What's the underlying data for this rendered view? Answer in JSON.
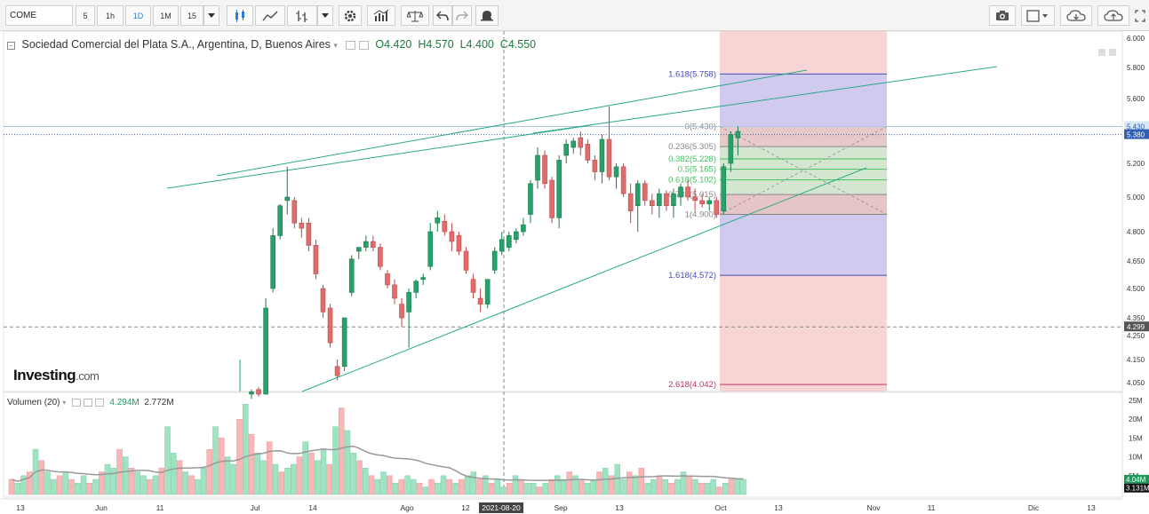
{
  "toolbar": {
    "symbol": "COME",
    "intervals": [
      "5",
      "1h",
      "1D",
      "1M",
      "15"
    ],
    "active_interval": "1D",
    "icons": [
      "candle-style-icon",
      "line-chart-icon",
      "bar-style-icon",
      "settings-icon",
      "indicators-icon",
      "compare-icon",
      "undo-icon",
      "redo-icon",
      "alert-icon",
      "camera-icon",
      "layout-icon",
      "cloud-download-icon",
      "cloud-upload-icon",
      "fullscreen-icon"
    ]
  },
  "legend": {
    "title": "Sociedad Comercial del Plata S.A., Argentina, D, Buenos Aires",
    "open": "O4.420",
    "high": "H4.570",
    "low": "L4.400",
    "close": "C4.550"
  },
  "volume_legend": {
    "title": "Volumen (20)",
    "value1": "4.294M",
    "value2": "2.772M"
  },
  "logo": {
    "brand": "Investing",
    "suffix": ".com"
  },
  "colors": {
    "up": "#26a269",
    "down": "#e26b6b",
    "vol_up": "#9fe3c2",
    "vol_down": "#f7b7b7",
    "fib_upper": "#c8c8f2",
    "fib_lower": "#f5c7c7"
  },
  "chart_data": {
    "type": "candlestick",
    "price_axis": [
      "6.000",
      "5.800",
      "5.600",
      "5.400",
      "5.200",
      "5.000",
      "4.800",
      "4.650",
      "4.500",
      "4.350",
      "4.250",
      "4.150",
      "4.050"
    ],
    "price_badges": [
      {
        "label": "5.430",
        "price": 5.43
      },
      {
        "label": "5.380",
        "price": 5.38
      },
      {
        "label": "4.299",
        "price": 4.299
      }
    ],
    "volume_axis": [
      "25M",
      "20M",
      "15M",
      "10M",
      "5M"
    ],
    "volume_badges": [
      {
        "label": "4.04M"
      },
      {
        "label": "3.131M"
      }
    ],
    "x_axis": [
      "13",
      "Jun",
      "11",
      "Jul",
      "14",
      "Ago",
      "12",
      "2021-08-20",
      "Sep",
      "13",
      "Oct",
      "13",
      "Nov",
      "11",
      "Dic",
      "13"
    ],
    "fib_levels": [
      {
        "label": "1.618(5.758)",
        "price": 5.758,
        "color": "#4a4ab8"
      },
      {
        "label": "0(5.430)",
        "price": 5.43,
        "color": "#888888"
      },
      {
        "label": "0.236(5.305)",
        "price": 5.305,
        "color": "#888888"
      },
      {
        "label": "0.382(5.228)",
        "price": 5.228,
        "color": "#3ec25f"
      },
      {
        "label": "0.5(5.165)",
        "price": 5.165,
        "color": "#3ec25f"
      },
      {
        "label": "0.618(5.102)",
        "price": 5.102,
        "color": "#3ec25f"
      },
      {
        "label": "0.786(5.015)",
        "price": 5.015,
        "color": "#888888"
      },
      {
        "label": "1(4.900)",
        "price": 4.9,
        "color": "#888888"
      },
      {
        "label": "1.618(4.572)",
        "price": 4.572,
        "color": "#4a4ab8"
      },
      {
        "label": "2.618(4.042)",
        "price": 4.042,
        "color": "#c0306b"
      }
    ],
    "candles": [
      {
        "o": 4.0,
        "h": 4.02,
        "l": 3.98,
        "c": 4.01
      },
      {
        "o": 4.02,
        "h": 4.03,
        "l": 3.99,
        "c": 4.0
      },
      {
        "o": 4.0,
        "h": 4.45,
        "l": 4.0,
        "c": 4.4
      },
      {
        "o": 4.5,
        "h": 4.82,
        "l": 4.48,
        "c": 4.78
      },
      {
        "o": 4.78,
        "h": 4.96,
        "l": 4.76,
        "c": 4.95
      },
      {
        "o": 4.98,
        "h": 5.18,
        "l": 4.9,
        "c": 5.0
      },
      {
        "o": 4.98,
        "h": 5.0,
        "l": 4.82,
        "c": 4.85
      },
      {
        "o": 4.85,
        "h": 4.88,
        "l": 4.77,
        "c": 4.82
      },
      {
        "o": 4.85,
        "h": 4.88,
        "l": 4.7,
        "c": 4.73
      },
      {
        "o": 4.73,
        "h": 4.76,
        "l": 4.55,
        "c": 4.58
      },
      {
        "o": 4.5,
        "h": 4.52,
        "l": 4.35,
        "c": 4.38
      },
      {
        "o": 4.4,
        "h": 4.42,
        "l": 4.2,
        "c": 4.22
      },
      {
        "o": 4.12,
        "h": 4.15,
        "l": 4.06,
        "c": 4.08
      },
      {
        "o": 4.12,
        "h": 4.35,
        "l": 4.1,
        "c": 4.35
      },
      {
        "o": 4.48,
        "h": 4.68,
        "l": 4.46,
        "c": 4.66
      },
      {
        "o": 4.7,
        "h": 4.72,
        "l": 4.66,
        "c": 4.72
      },
      {
        "o": 4.72,
        "h": 4.78,
        "l": 4.7,
        "c": 4.75
      },
      {
        "o": 4.75,
        "h": 4.78,
        "l": 4.7,
        "c": 4.72
      },
      {
        "o": 4.72,
        "h": 4.74,
        "l": 4.6,
        "c": 4.62
      },
      {
        "o": 4.58,
        "h": 4.6,
        "l": 4.5,
        "c": 4.52
      },
      {
        "o": 4.52,
        "h": 4.55,
        "l": 4.42,
        "c": 4.45
      },
      {
        "o": 4.42,
        "h": 4.45,
        "l": 4.3,
        "c": 4.35
      },
      {
        "o": 4.38,
        "h": 4.5,
        "l": 4.2,
        "c": 4.48
      },
      {
        "o": 4.48,
        "h": 4.55,
        "l": 4.45,
        "c": 4.54
      },
      {
        "o": 4.55,
        "h": 4.58,
        "l": 4.52,
        "c": 4.56
      },
      {
        "o": 4.62,
        "h": 4.85,
        "l": 4.6,
        "c": 4.8
      },
      {
        "o": 4.85,
        "h": 4.92,
        "l": 4.8,
        "c": 4.88
      },
      {
        "o": 4.86,
        "h": 4.9,
        "l": 4.78,
        "c": 4.8
      },
      {
        "o": 4.8,
        "h": 4.85,
        "l": 4.7,
        "c": 4.75
      },
      {
        "o": 4.78,
        "h": 4.8,
        "l": 4.68,
        "c": 4.7
      },
      {
        "o": 4.7,
        "h": 4.72,
        "l": 4.58,
        "c": 4.6
      },
      {
        "o": 4.55,
        "h": 4.58,
        "l": 4.45,
        "c": 4.48
      },
      {
        "o": 4.45,
        "h": 4.5,
        "l": 4.38,
        "c": 4.42
      },
      {
        "o": 4.42,
        "h": 4.55,
        "l": 4.4,
        "c": 4.55
      },
      {
        "o": 4.6,
        "h": 4.72,
        "l": 4.58,
        "c": 4.7
      },
      {
        "o": 4.7,
        "h": 4.8,
        "l": 4.68,
        "c": 4.76
      },
      {
        "o": 4.72,
        "h": 4.8,
        "l": 4.7,
        "c": 4.78
      },
      {
        "o": 4.76,
        "h": 4.82,
        "l": 4.74,
        "c": 4.8
      },
      {
        "o": 4.8,
        "h": 4.88,
        "l": 4.78,
        "c": 4.84
      },
      {
        "o": 4.9,
        "h": 5.1,
        "l": 4.85,
        "c": 5.08
      },
      {
        "o": 5.1,
        "h": 5.3,
        "l": 5.05,
        "c": 5.25
      },
      {
        "o": 5.25,
        "h": 5.28,
        "l": 5.05,
        "c": 5.08
      },
      {
        "o": 5.1,
        "h": 5.12,
        "l": 4.85,
        "c": 4.88
      },
      {
        "o": 4.88,
        "h": 5.25,
        "l": 4.82,
        "c": 5.22
      },
      {
        "o": 5.25,
        "h": 5.35,
        "l": 5.2,
        "c": 5.32
      },
      {
        "o": 5.3,
        "h": 5.36,
        "l": 5.26,
        "c": 5.34
      },
      {
        "o": 5.36,
        "h": 5.4,
        "l": 5.25,
        "c": 5.3
      },
      {
        "o": 5.32,
        "h": 5.35,
        "l": 5.2,
        "c": 5.22
      },
      {
        "o": 5.22,
        "h": 5.25,
        "l": 5.1,
        "c": 5.15
      },
      {
        "o": 5.15,
        "h": 5.38,
        "l": 5.08,
        "c": 5.35
      },
      {
        "o": 5.35,
        "h": 5.55,
        "l": 5.1,
        "c": 5.12
      },
      {
        "o": 5.12,
        "h": 5.2,
        "l": 5.05,
        "c": 5.18
      },
      {
        "o": 5.18,
        "h": 5.2,
        "l": 5.0,
        "c": 5.02
      },
      {
        "o": 5.02,
        "h": 5.08,
        "l": 4.85,
        "c": 4.92
      },
      {
        "o": 4.95,
        "h": 5.1,
        "l": 4.8,
        "c": 5.08
      },
      {
        "o": 5.08,
        "h": 5.1,
        "l": 4.95,
        "c": 4.98
      },
      {
        "o": 4.98,
        "h": 5.02,
        "l": 4.9,
        "c": 4.95
      },
      {
        "o": 4.95,
        "h": 5.05,
        "l": 4.88,
        "c": 5.02
      },
      {
        "o": 5.02,
        "h": 5.04,
        "l": 4.92,
        "c": 4.95
      },
      {
        "o": 4.95,
        "h": 5.05,
        "l": 4.88,
        "c": 5.02
      },
      {
        "o": 5.0,
        "h": 5.08,
        "l": 4.95,
        "c": 5.06
      },
      {
        "o": 5.06,
        "h": 5.1,
        "l": 4.98,
        "c": 5.0
      },
      {
        "o": 5.0,
        "h": 5.05,
        "l": 4.92,
        "c": 4.98
      },
      {
        "o": 4.98,
        "h": 5.02,
        "l": 4.94,
        "c": 4.96
      },
      {
        "o": 4.96,
        "h": 5.0,
        "l": 4.92,
        "c": 4.98
      },
      {
        "o": 4.98,
        "h": 5.0,
        "l": 4.88,
        "c": 4.9
      },
      {
        "o": 4.92,
        "h": 5.2,
        "l": 4.9,
        "c": 5.18
      },
      {
        "o": 5.2,
        "h": 5.4,
        "l": 5.15,
        "c": 5.38
      },
      {
        "o": 5.36,
        "h": 5.43,
        "l": 5.25,
        "c": 5.4
      }
    ],
    "volumes": [
      4,
      3,
      5,
      6,
      12,
      9,
      6,
      4,
      5,
      6,
      4,
      3,
      5,
      3,
      4,
      6,
      8,
      7,
      12,
      10,
      7,
      6,
      5,
      4,
      5,
      7,
      18,
      11,
      9,
      6,
      5,
      4,
      7,
      12,
      18,
      15,
      10,
      8,
      20,
      24,
      16,
      11,
      9,
      14,
      8,
      6,
      7,
      8,
      10,
      14,
      11,
      9,
      12,
      8,
      18,
      23,
      17,
      11,
      9,
      7,
      5,
      4,
      6,
      5,
      3,
      4,
      5,
      4,
      3,
      2,
      4,
      3,
      5,
      4,
      3,
      4,
      5,
      6,
      4,
      5,
      3,
      4,
      2,
      3,
      5,
      4,
      3,
      3,
      2,
      3,
      4,
      5,
      4,
      6,
      5,
      4,
      3,
      4,
      6,
      7,
      5,
      8,
      4,
      6,
      5,
      7,
      3,
      4,
      5,
      4,
      3,
      4,
      6,
      5,
      4,
      3,
      3,
      4,
      2,
      3,
      4,
      4,
      4
    ]
  }
}
